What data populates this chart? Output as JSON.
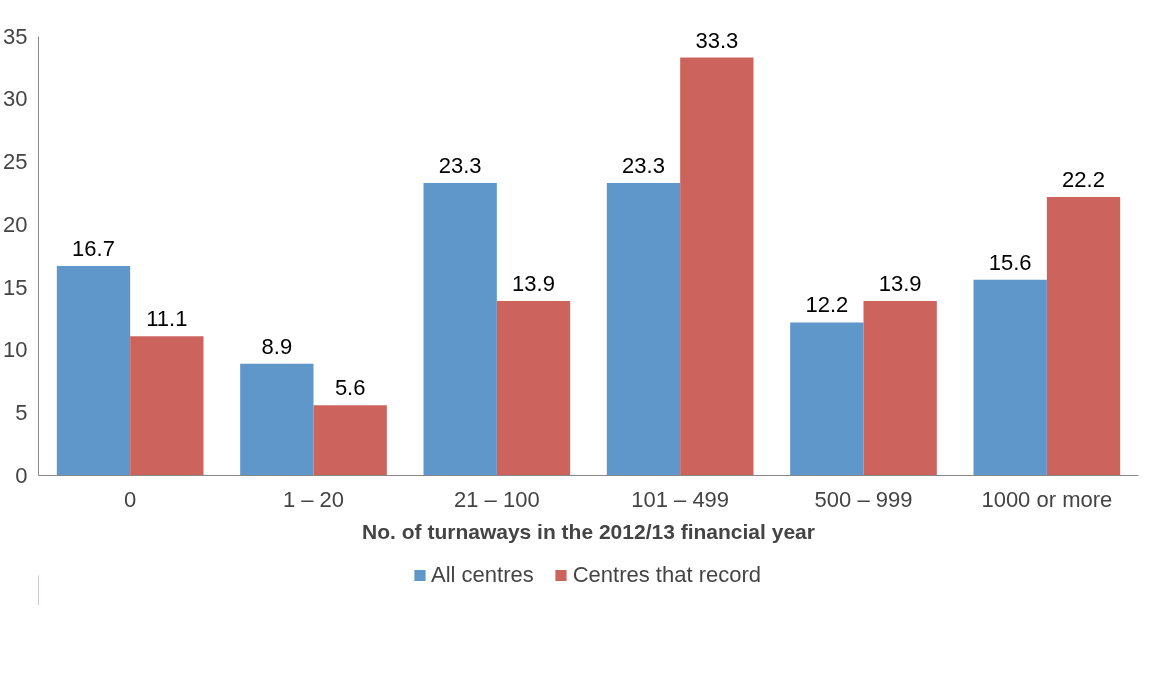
{
  "chart_data": {
    "type": "bar",
    "xlabel": "No. of turnaways in the 2012/13 financial year",
    "categories": [
      "0",
      "1 – 20",
      "21 – 100",
      "101 – 499",
      "500 – 999",
      "1000 or more"
    ],
    "series": [
      {
        "name": "All centres",
        "color": "#6097ca",
        "values": [
          16.7,
          8.9,
          23.3,
          23.3,
          12.2,
          15.6
        ]
      },
      {
        "name": "Centres that record",
        "color": "#cc645d",
        "values": [
          11.1,
          5.6,
          13.9,
          33.3,
          13.9,
          22.2
        ]
      }
    ],
    "ylim": [
      0,
      35
    ],
    "yticks": [
      0,
      5,
      10,
      15,
      20,
      25,
      30,
      35
    ],
    "grid": false,
    "legend": "bottom",
    "data_labels": true
  }
}
